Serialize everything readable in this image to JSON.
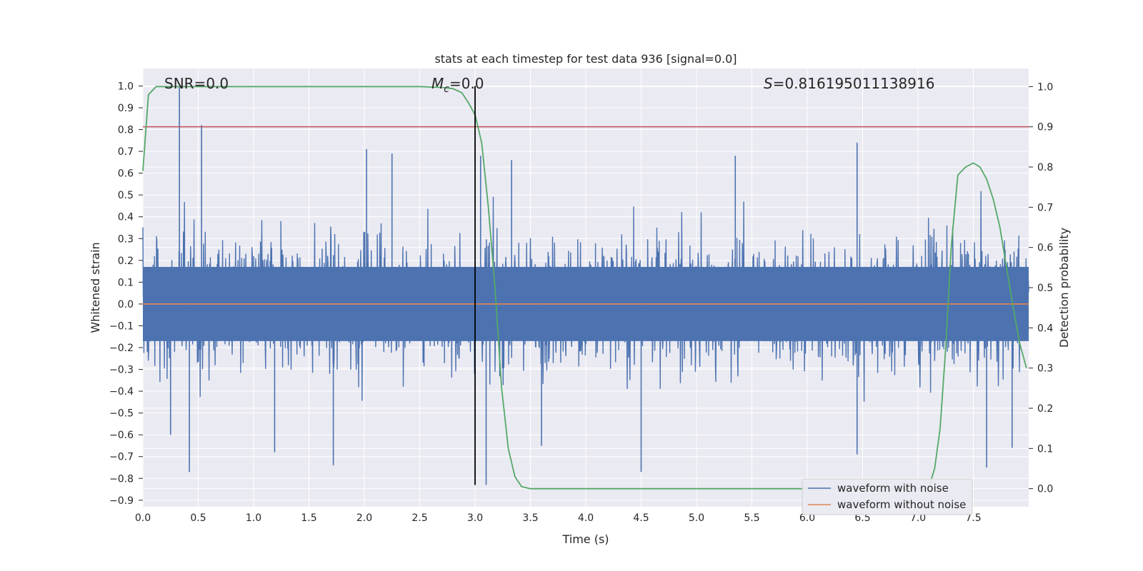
{
  "chart_data": {
    "type": "line",
    "title": "stats at each timestep for test data 936 [signal=0.0]",
    "xlabel": "Time (s)",
    "ylabel": "Whitened strain",
    "y2label": "Detection probability",
    "xlim": [
      0.0,
      8.0
    ],
    "ylim": [
      -0.93,
      1.08
    ],
    "y2lim": [
      -0.045,
      1.045
    ],
    "xticks": [
      "0.0",
      "0.5",
      "1.0",
      "1.5",
      "2.0",
      "2.5",
      "3.0",
      "3.5",
      "4.0",
      "4.5",
      "5.0",
      "5.5",
      "6.0",
      "6.5",
      "7.0",
      "7.5"
    ],
    "yticks": [
      "1.0",
      "0.9",
      "0.8",
      "0.7",
      "0.6",
      "0.5",
      "0.4",
      "0.3",
      "0.2",
      "0.1",
      "0.0",
      "−0.1",
      "−0.2",
      "−0.3",
      "−0.4",
      "−0.5",
      "−0.6",
      "−0.7",
      "−0.8",
      "−0.9"
    ],
    "y2ticks": [
      "1.0",
      "0.9",
      "0.8",
      "0.7",
      "0.6",
      "0.5",
      "0.4",
      "0.3",
      "0.2",
      "0.1",
      "0.0"
    ],
    "grid": true,
    "legend_position": "bottom-right",
    "annotations": {
      "snr_prefix": "SNR=",
      "snr_value": "0.0",
      "mc_symbol": "M",
      "mc_subscript": "c",
      "mc_value": "=0.0",
      "s_symbol": "S",
      "s_value": "=0.816195011138916"
    },
    "threshold_line": {
      "y2": 0.9,
      "color": "#c44e52"
    },
    "event_time_line": {
      "x": 3.0,
      "y_range": [
        -0.83,
        1.0
      ],
      "color": "#000000"
    },
    "series": [
      {
        "name": "waveform with noise",
        "color": "#4c72b0",
        "axis": "left",
        "kind": "noise",
        "typical_envelope": [
          -0.3,
          0.3
        ],
        "spikes": [
          {
            "x": 0.33,
            "y": 1.0
          },
          {
            "x": 0.53,
            "y": 0.82
          },
          {
            "x": 0.42,
            "y": -0.77
          },
          {
            "x": 0.25,
            "y": -0.6
          },
          {
            "x": 1.19,
            "y": -0.68
          },
          {
            "x": 1.72,
            "y": -0.74
          },
          {
            "x": 2.02,
            "y": 0.71
          },
          {
            "x": 2.25,
            "y": 0.69
          },
          {
            "x": 3.1,
            "y": -0.83
          },
          {
            "x": 3.05,
            "y": 0.68
          },
          {
            "x": 3.33,
            "y": 0.66
          },
          {
            "x": 3.6,
            "y": -0.65
          },
          {
            "x": 4.5,
            "y": -0.77
          },
          {
            "x": 5.35,
            "y": 0.68
          },
          {
            "x": 6.45,
            "y": 0.74
          },
          {
            "x": 6.45,
            "y": -0.69
          },
          {
            "x": 7.62,
            "y": -0.75
          },
          {
            "x": 7.85,
            "y": -0.66
          }
        ]
      },
      {
        "name": "waveform without noise",
        "color": "#dd8452",
        "axis": "left",
        "x": [
          0.0,
          8.0
        ],
        "y": [
          0.0,
          0.0
        ]
      },
      {
        "color": "#55a868",
        "axis": "right",
        "x": [
          0.0,
          0.05,
          0.12,
          0.3,
          1.0,
          2.0,
          2.5,
          2.7,
          2.8,
          2.88,
          2.94,
          3.0,
          3.06,
          3.12,
          3.18,
          3.24,
          3.3,
          3.36,
          3.42,
          3.5,
          4.0,
          5.0,
          6.0,
          7.0,
          7.1,
          7.15,
          7.2,
          7.25,
          7.3,
          7.36,
          7.43,
          7.5,
          7.56,
          7.62,
          7.68,
          7.74,
          7.8,
          7.86,
          7.92,
          7.98
        ],
        "y": [
          0.79,
          0.98,
          1.0,
          1.0,
          1.0,
          1.0,
          1.0,
          0.998,
          0.995,
          0.985,
          0.96,
          0.93,
          0.86,
          0.7,
          0.5,
          0.25,
          0.1,
          0.03,
          0.005,
          0.0,
          0.0,
          0.0,
          0.0,
          0.0,
          0.005,
          0.05,
          0.15,
          0.35,
          0.6,
          0.78,
          0.8,
          0.81,
          0.8,
          0.77,
          0.72,
          0.65,
          0.55,
          0.45,
          0.36,
          0.3
        ]
      }
    ]
  }
}
